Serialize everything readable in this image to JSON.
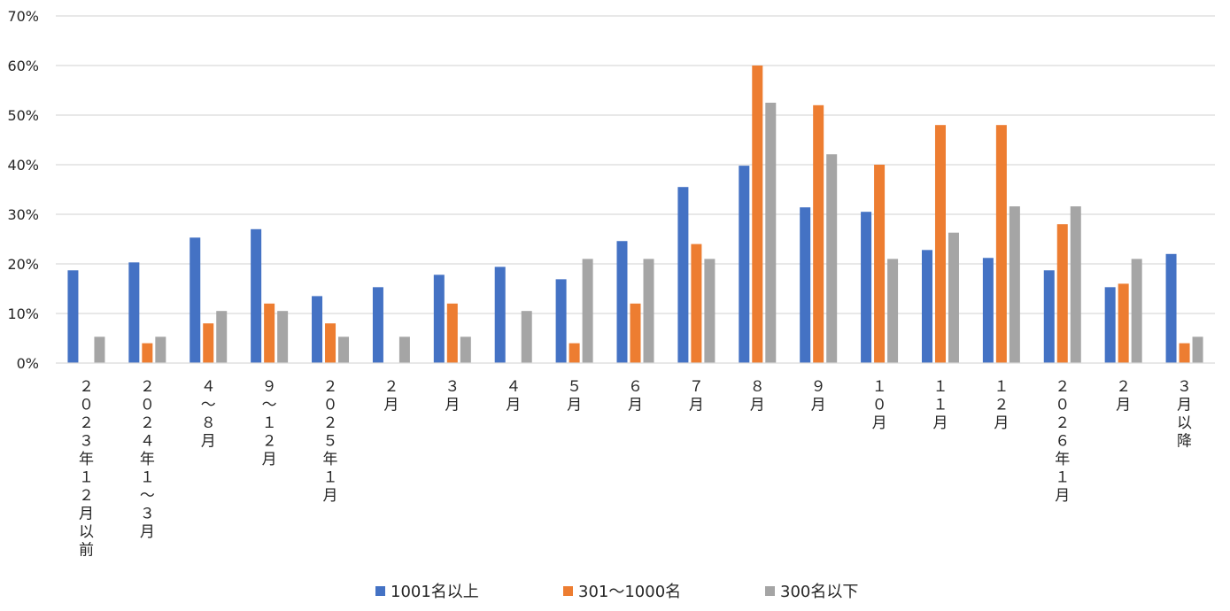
{
  "chart_data": {
    "type": "bar",
    "categories": [
      "２０２３年１２月以前",
      "２０２４年１～３月",
      "４～８月",
      "９～１２月",
      "２０２５年１月",
      "２月",
      "３月",
      "４月",
      "５月",
      "６月",
      "７月",
      "８月",
      "９月",
      "１０月",
      "１１月",
      "１２月",
      "２０２６年１月",
      "２月",
      "３月以降"
    ],
    "series": [
      {
        "name": "1001名以上",
        "color": "#4472C4",
        "values": [
          18.7,
          20.3,
          25.3,
          27.0,
          13.5,
          15.3,
          17.8,
          19.4,
          16.9,
          24.6,
          35.5,
          39.8,
          31.4,
          30.5,
          22.8,
          21.2,
          18.7,
          15.3,
          22.0
        ]
      },
      {
        "name": "301～1000名",
        "color": "#ED7D31",
        "values": [
          0,
          4.0,
          8.0,
          12.0,
          8.0,
          0,
          12.0,
          0,
          4.0,
          12.0,
          24.0,
          60.0,
          52.0,
          40.0,
          48.0,
          48.0,
          28.0,
          16.0,
          4.0
        ]
      },
      {
        "name": "300名以下",
        "color": "#A5A5A5",
        "values": [
          5.3,
          5.3,
          10.5,
          10.5,
          5.3,
          5.3,
          5.3,
          10.5,
          21.0,
          21.0,
          21.0,
          52.5,
          42.1,
          21.0,
          26.3,
          31.6,
          31.6,
          21.0,
          5.3
        ]
      }
    ],
    "y_ticks": [
      "0%",
      "10%",
      "20%",
      "30%",
      "40%",
      "50%",
      "60%",
      "70%"
    ],
    "ylim": [
      0,
      70
    ],
    "y_unit": "%",
    "grid": "horizontal",
    "legend_position": "bottom"
  }
}
